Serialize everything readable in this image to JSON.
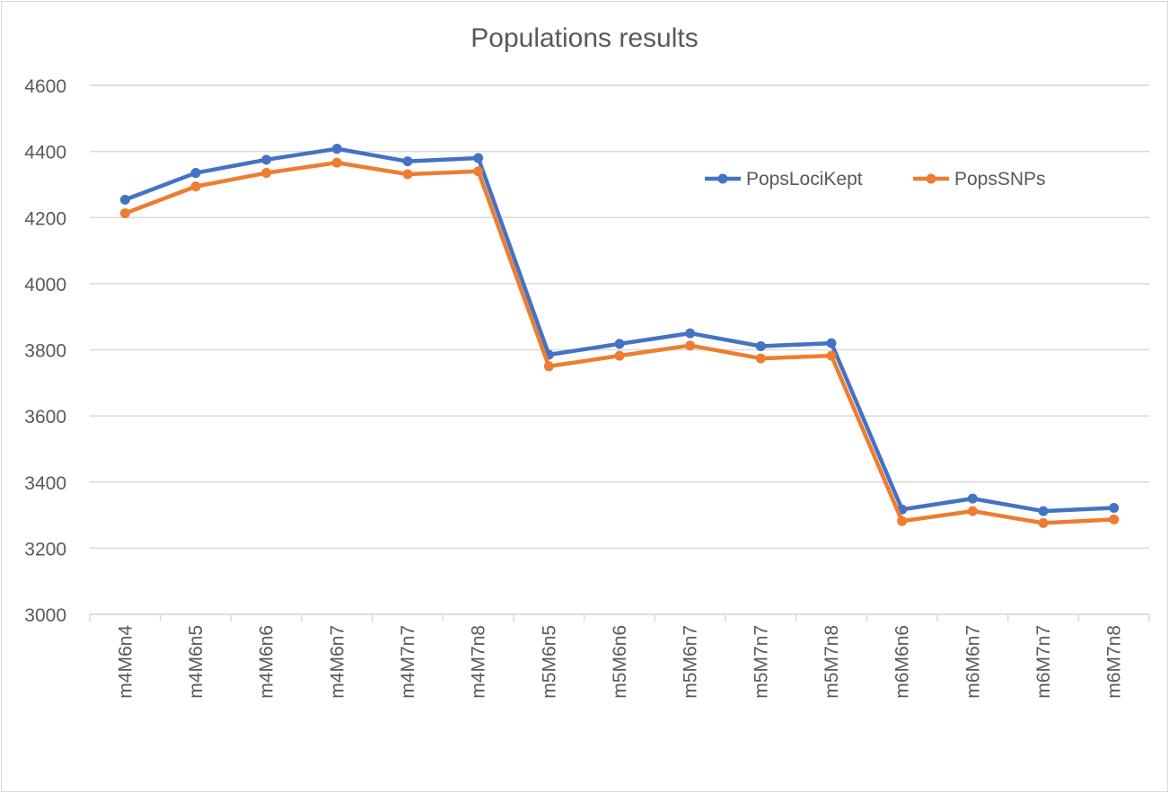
{
  "chart_data": {
    "type": "line",
    "title": "Populations results",
    "xlabel": "",
    "ylabel": "",
    "ylim": [
      3000,
      4600
    ],
    "yticks": [
      3000,
      3200,
      3400,
      3600,
      3800,
      4000,
      4200,
      4400,
      4600
    ],
    "grid": true,
    "legend_position": "top-right",
    "categories": [
      "m4M6n4",
      "m4M6n5",
      "m4M6n6",
      "m4M6n7",
      "m4M7n7",
      "m4M7n8",
      "m5M6n5",
      "m5M6n6",
      "m5M6n7",
      "m5M7n7",
      "m5M7n8",
      "m6M6n6",
      "m6M6n7",
      "m6M7n7",
      "m6M7n8"
    ],
    "series": [
      {
        "name": "PopsLociKept",
        "color": "#4472C4",
        "values": [
          4254,
          4335,
          4375,
          4408,
          4370,
          4380,
          3785,
          3818,
          3850,
          3811,
          3820,
          3317,
          3350,
          3312,
          3322
        ]
      },
      {
        "name": "PopsSNPs",
        "color": "#ED7D31",
        "values": [
          4213,
          4294,
          4335,
          4366,
          4331,
          4340,
          3750,
          3782,
          3813,
          3774,
          3782,
          3282,
          3312,
          3276,
          3287
        ]
      }
    ]
  }
}
